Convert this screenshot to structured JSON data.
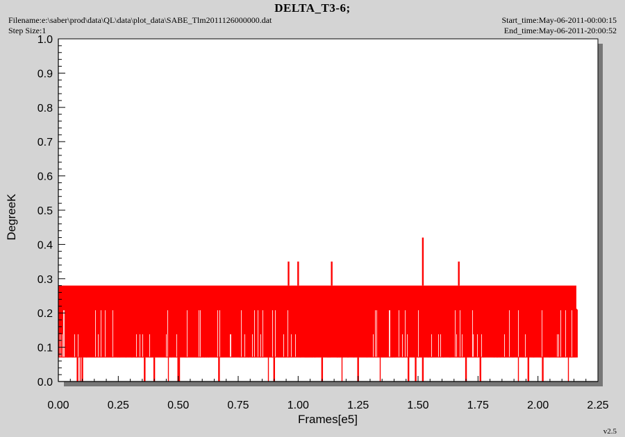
{
  "header": {
    "title": "DELTA_T3-6;",
    "filename": "Filename:e:\\saber\\prod\\data\\QL\\data\\plot_data\\SABE_Tlm2011126000000.dat",
    "step_size": "Step Size:1",
    "start_time": "Start_time:May-06-2011-00:00:15",
    "end_time": "End_time:May-06-2011-20:00:52"
  },
  "version": "v2.5",
  "colors": {
    "series": "#ff0000",
    "plot_background": "#ffffff",
    "shadow": "#777777",
    "page_background": "#d4d4d4"
  },
  "chart_data": {
    "type": "line",
    "title": "DELTA_T3-6;",
    "xlabel": "Frames[e5]",
    "ylabel": "DegreeK",
    "xlim": [
      0,
      2.25
    ],
    "ylim": [
      0,
      1.0
    ],
    "x_ticks": [
      "0.00",
      "0.25",
      "0.50",
      "0.75",
      "1.00",
      "1.25",
      "1.50",
      "1.75",
      "2.00",
      "2.25"
    ],
    "y_ticks": [
      "0.0",
      "0.1",
      "0.2",
      "0.3",
      "0.4",
      "0.5",
      "0.6",
      "0.7",
      "0.8",
      "0.9",
      "1.0"
    ],
    "grid": false,
    "legend": "none",
    "series": [
      {
        "x_range": [
          0,
          2.16
        ],
        "band_low": 0.07,
        "band_high": 0.28,
        "levels": [
          0.0,
          0.07,
          0.14,
          0.21,
          0.28,
          0.35,
          0.42
        ],
        "spikes": [
          {
            "x": 0.96,
            "y": 0.35
          },
          {
            "x": 1.0,
            "y": 0.35
          },
          {
            "x": 1.14,
            "y": 0.35
          },
          {
            "x": 1.52,
            "y": 0.42
          },
          {
            "x": 1.67,
            "y": 0.35
          }
        ],
        "dropouts_to_zero": [
          0.08,
          0.1,
          0.36,
          0.4,
          0.5,
          0.67,
          0.9,
          1.1,
          1.25,
          1.46,
          1.49,
          1.52,
          1.7,
          1.76,
          1.96,
          2.02
        ],
        "end_value": 0.21
      }
    ]
  }
}
